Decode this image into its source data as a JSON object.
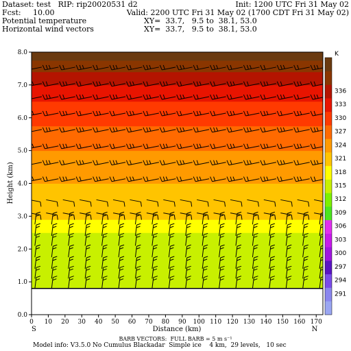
{
  "header": {
    "dataset_line": "Dataset: test   RIP: rip20020531 d2",
    "init_line": "Init: 1200 UTC Fri 31 May 02",
    "fcst_line": "Fcst:     10.00",
    "valid_line": "Valid: 2200 UTC Fri 31 May 02 (1700 CDT Fri 31 May 02)",
    "field1_name": "Potential temperature",
    "field1_xy": "XY=  33.7,   9.5 to  38.1, 53.0",
    "field2_name": "Horizontal wind vectors",
    "field2_xy": "XY=  33.7,   9.5 to  38.1, 53.0"
  },
  "footer": {
    "barb_note": "BARB VECTORS:  FULL BARB = 5 m s⁻¹",
    "model_info": "Model info: V3.5.0 No Cumulus Blackadar  Simple ice    4 km,  29 levels,   10 sec"
  },
  "axes": {
    "xlabel": "Distance (km)",
    "ylabel": "Height (km)",
    "left_end": "S",
    "right_end": "N",
    "colorbar_unit": "K"
  },
  "chart_data": {
    "type": "heatmap",
    "field": "Potential temperature",
    "units": "K",
    "xlabel": "Distance (km)",
    "ylabel": "Height (km)",
    "xlim": [
      0,
      174
    ],
    "ylim": [
      0,
      8.0
    ],
    "x_ticks": [
      0,
      10,
      20,
      30,
      40,
      50,
      60,
      70,
      80,
      90,
      100,
      110,
      120,
      130,
      140,
      150,
      160,
      170
    ],
    "y_ticks": [
      0.0,
      1.0,
      2.0,
      3.0,
      4.0,
      5.0,
      6.0,
      7.0,
      8.0
    ],
    "y_tick_labels": [
      "0.0",
      "1.0",
      "2.0",
      "3.0",
      "4.0",
      "5.0",
      "6.0",
      "7.0",
      "8.0"
    ],
    "colorbar_levels": [
      291,
      294,
      297,
      300,
      303,
      306,
      309,
      312,
      315,
      318,
      321,
      324,
      327,
      330,
      333,
      336
    ],
    "colorbar_colors": [
      "#9aa6f2",
      "#8a86ee",
      "#7a4cea",
      "#5a14c4",
      "#a016e0",
      "#c81aeb",
      "#e22ef0",
      "#4be61e",
      "#7df000",
      "#c8f000",
      "#ffff00",
      "#ffc400",
      "#ff9a00",
      "#ff6a00",
      "#ff3a00",
      "#e81400",
      "#b41400",
      "#8a3600",
      "#6a3a10"
    ],
    "theta_profile": [
      {
        "height": 0.85,
        "theta": 311
      },
      {
        "height": 2.5,
        "theta": 312
      },
      {
        "height": 2.75,
        "theta": 314
      },
      {
        "height": 3.1,
        "theta": 316
      },
      {
        "height": 3.5,
        "theta": 317
      },
      {
        "height": 4.0,
        "theta": 318
      },
      {
        "height": 4.5,
        "theta": 319.5
      },
      {
        "height": 5.0,
        "theta": 321
      },
      {
        "height": 5.5,
        "theta": 323
      },
      {
        "height": 6.0,
        "theta": 325
      },
      {
        "height": 6.5,
        "theta": 327
      },
      {
        "height": 7.0,
        "theta": 330
      },
      {
        "height": 7.5,
        "theta": 334
      },
      {
        "height": 8.0,
        "theta": 338
      }
    ],
    "terrain_height_km": 0.8,
    "wind_barb_rows_km": [
      0.8,
      1.1,
      1.4,
      1.75,
      2.1,
      2.4,
      2.75,
      3.1,
      3.5,
      4.1,
      4.6,
      5.1,
      5.6,
      6.1,
      6.6,
      7.0,
      7.5
    ],
    "wind_barb_columns_km": [
      2,
      12,
      22,
      32,
      42,
      52,
      62,
      72,
      82,
      92,
      102,
      112,
      122,
      132,
      142,
      152,
      162,
      172
    ]
  }
}
